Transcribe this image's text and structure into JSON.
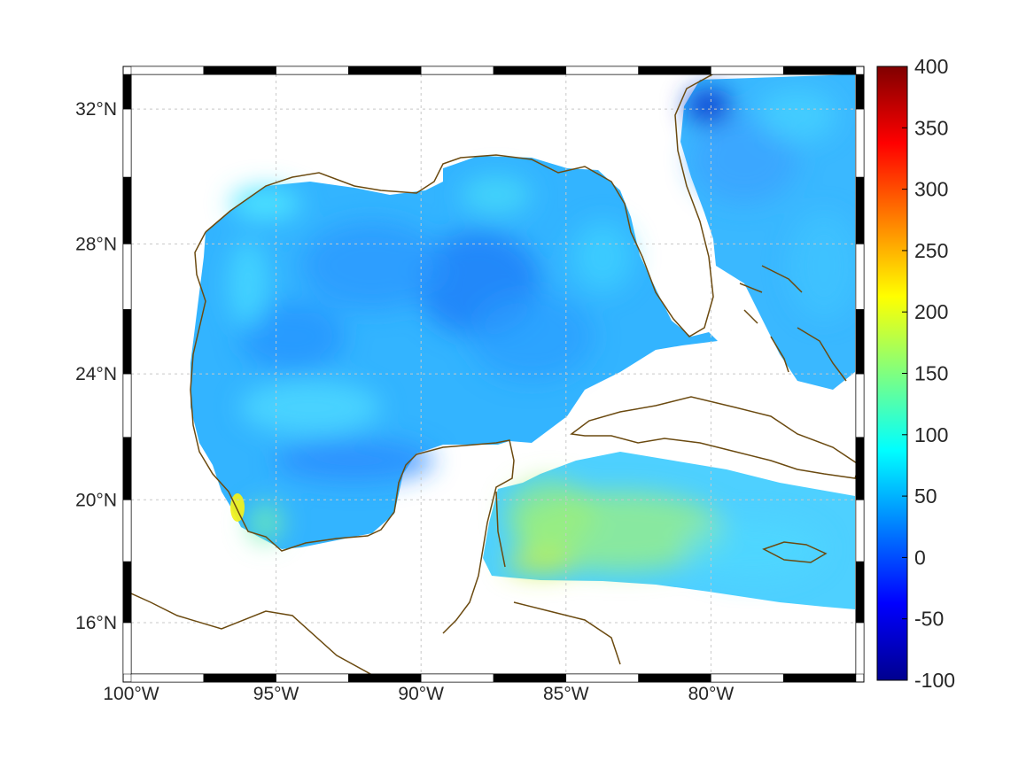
{
  "map": {
    "lat_ticks": [
      {
        "value": 32,
        "label": "32°N"
      },
      {
        "value": 28,
        "label": "28°N"
      },
      {
        "value": 24,
        "label": "24°N"
      },
      {
        "value": 20,
        "label": "20°N"
      },
      {
        "value": 16,
        "label": "16°N"
      }
    ],
    "lon_ticks": [
      {
        "value": -100,
        "label": "100°W"
      },
      {
        "value": -95,
        "label": "95°W"
      },
      {
        "value": -90,
        "label": "90°W"
      },
      {
        "value": -85,
        "label": "85°W"
      },
      {
        "value": -80,
        "label": "80°W"
      }
    ],
    "extent": {
      "lon": [
        -100,
        -75
      ],
      "lat": [
        14.3,
        33
      ]
    },
    "projection": "mercator",
    "grid": true,
    "frame_style": "black-white-striped",
    "coastline_color": "#6b4a10",
    "land_color": "#ffffff",
    "field_colors_observed": {
      "deep_gulf": "#1e88ff",
      "central_gulf": "#33b0ff",
      "shelf": "#40e0ff",
      "caribbean": "#7cf0a0",
      "bay_of_campeche": "#f0f020",
      "ga_coast": "#0a40d0"
    }
  },
  "colorbar": {
    "min": -100,
    "max": 400,
    "colormap": "jet",
    "ticks": [
      {
        "value": 400,
        "label": "400"
      },
      {
        "value": 350,
        "label": "350"
      },
      {
        "value": 300,
        "label": "300"
      },
      {
        "value": 250,
        "label": "250"
      },
      {
        "value": 200,
        "label": "200"
      },
      {
        "value": 150,
        "label": "150"
      },
      {
        "value": 100,
        "label": "100"
      },
      {
        "value": 50,
        "label": "50"
      },
      {
        "value": 0,
        "label": "0"
      },
      {
        "value": -50,
        "label": "-50"
      },
      {
        "value": -100,
        "label": "-100"
      }
    ]
  }
}
